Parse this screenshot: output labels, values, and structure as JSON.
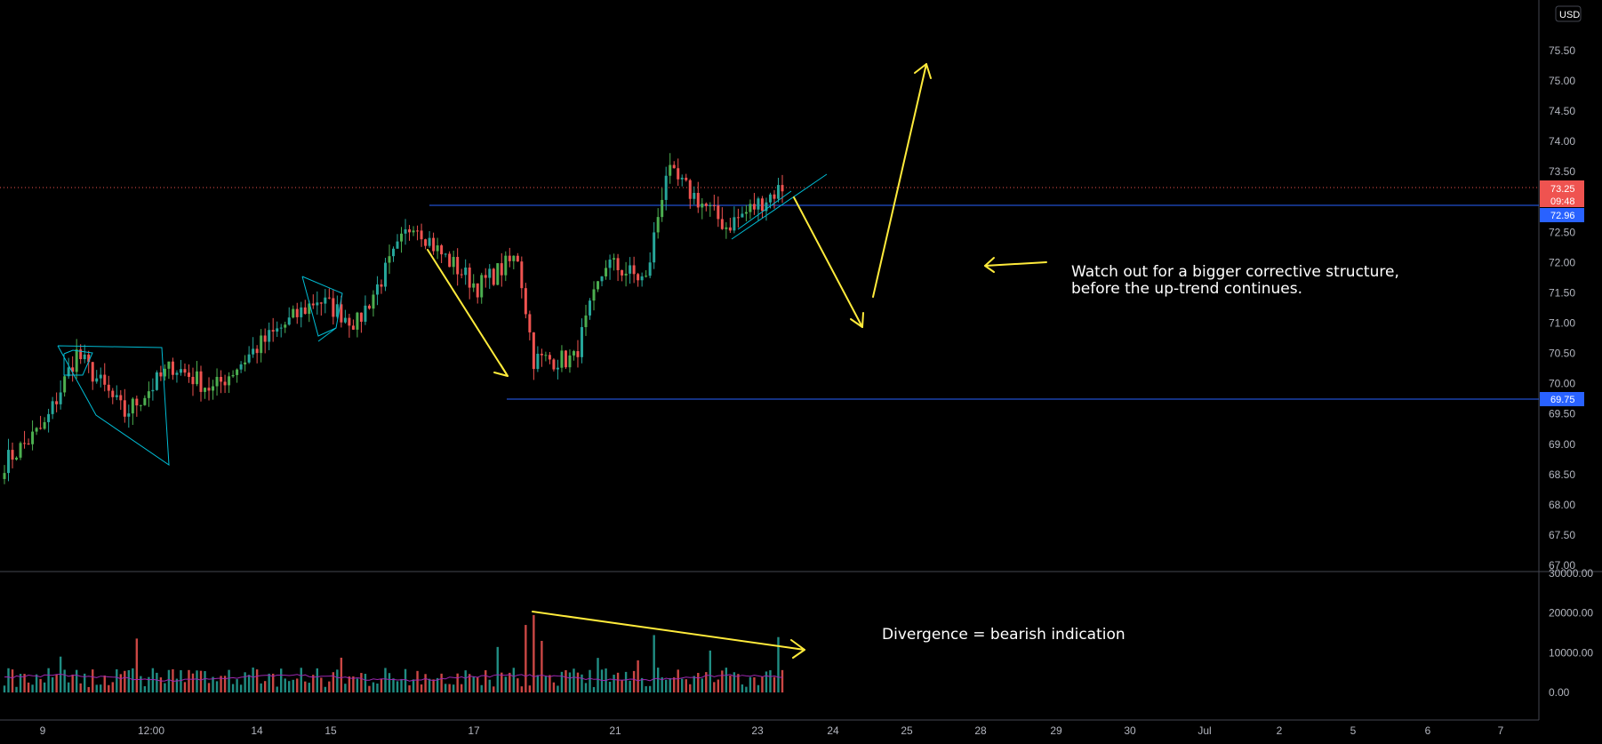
{
  "currency": "USD",
  "annotations": {
    "main_line1": "Watch out for a bigger corrective structure,",
    "main_line2": "before the up-trend continues.",
    "volume": "Divergence = bearish indication"
  },
  "price_badges": {
    "current_price": "73.25",
    "countdown": "09:48",
    "resistance": "72.96",
    "support": "69.75"
  },
  "colors": {
    "up": "#26a69a",
    "up_bright": "#4caf50",
    "down": "#ef5350",
    "drawing": "#ffeb3b",
    "level": "#2962ff",
    "pattern": "#00bcd4",
    "volume_ma": "#9c27b0"
  },
  "chart_data": [
    {
      "type": "candlestick",
      "title": "",
      "ylim": [
        67.0,
        76.0
      ],
      "y_ticks": [
        "67.00",
        "67.50",
        "68.00",
        "68.50",
        "69.00",
        "69.50",
        "70.00",
        "70.50",
        "71.00",
        "71.50",
        "72.00",
        "72.50",
        "73.00",
        "73.50",
        "74.00",
        "74.50",
        "75.00",
        "75.50"
      ],
      "y_tick_values": [
        67.0,
        67.5,
        68.0,
        68.5,
        69.0,
        69.5,
        70.0,
        70.5,
        71.0,
        71.5,
        72.0,
        72.5,
        73.0,
        73.5,
        74.0,
        74.5,
        75.0,
        75.5
      ],
      "x_ticks": [
        "9",
        "12:00",
        "14",
        "15",
        "17",
        "21",
        "23",
        "24",
        "25",
        "28",
        "29",
        "30",
        "Jul",
        "2",
        "5",
        "6",
        "7"
      ],
      "horizontal_levels": [
        {
          "label": "72.96",
          "value": 72.96
        },
        {
          "label": "69.75",
          "value": 69.75
        }
      ],
      "current_price": 73.25,
      "key_path": [
        {
          "bar": 0,
          "price": 68.7
        },
        {
          "bar": 10,
          "price": 69.3
        },
        {
          "bar": 18,
          "price": 70.5
        },
        {
          "bar": 30,
          "price": 69.5
        },
        {
          "bar": 42,
          "price": 70.3
        },
        {
          "bar": 52,
          "price": 69.9
        },
        {
          "bar": 63,
          "price": 70.6
        },
        {
          "bar": 78,
          "price": 71.4
        },
        {
          "bar": 88,
          "price": 71.0
        },
        {
          "bar": 102,
          "price": 72.7
        },
        {
          "bar": 108,
          "price": 72.2
        },
        {
          "bar": 118,
          "price": 71.6
        },
        {
          "bar": 128,
          "price": 72.1
        },
        {
          "bar": 132,
          "price": 70.4
        },
        {
          "bar": 142,
          "price": 70.4
        },
        {
          "bar": 150,
          "price": 72.0
        },
        {
          "bar": 160,
          "price": 71.7
        },
        {
          "bar": 165,
          "price": 73.5
        },
        {
          "bar": 172,
          "price": 73.1
        },
        {
          "bar": 180,
          "price": 72.6
        },
        {
          "bar": 194,
          "price": 73.25
        }
      ],
      "bar_count": 195
    },
    {
      "type": "bar",
      "title": "",
      "series": [
        {
          "name": "",
          "values": []
        }
      ],
      "ylim": [
        0,
        30000
      ],
      "y_ticks": [
        "0.00",
        "10000.00",
        "20000.00",
        "30000.00"
      ],
      "y_tick_values": [
        0,
        10000,
        20000,
        30000
      ],
      "typical_volume": 4500,
      "peak_volume": 19500,
      "moving_average_level": 4000
    }
  ]
}
